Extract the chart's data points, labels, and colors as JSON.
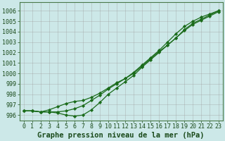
{
  "title": "Graphe pression niveau de la mer (hPa)",
  "xlabel_hours": [
    0,
    1,
    2,
    3,
    4,
    5,
    6,
    7,
    8,
    9,
    10,
    11,
    12,
    13,
    14,
    15,
    16,
    17,
    18,
    19,
    20,
    21,
    22,
    23
  ],
  "series": [
    [
      996.4,
      996.4,
      996.3,
      996.3,
      996.3,
      996.4,
      996.6,
      996.9,
      997.4,
      997.9,
      998.5,
      999.0,
      999.5,
      1000.1,
      1000.8,
      1001.5,
      1002.2,
      1003.0,
      1003.8,
      1004.5,
      1005.0,
      1005.4,
      1005.7,
      1006.0
    ],
    [
      996.4,
      996.4,
      996.3,
      996.3,
      996.2,
      996.0,
      995.9,
      996.0,
      996.5,
      997.2,
      998.0,
      998.6,
      999.2,
      999.8,
      1000.6,
      1001.3,
      1002.0,
      1002.7,
      1003.4,
      1004.2,
      1004.8,
      1005.2,
      1005.6,
      1006.0
    ],
    [
      996.4,
      996.4,
      996.3,
      996.5,
      996.8,
      997.1,
      997.3,
      997.4,
      997.7,
      998.1,
      998.6,
      999.1,
      999.5,
      1000.0,
      1000.7,
      1001.4,
      1002.1,
      1002.7,
      1003.4,
      1004.1,
      1004.7,
      1005.1,
      1005.5,
      1005.9
    ]
  ],
  "line_color": "#1a6b1a",
  "marker_color": "#1a6b1a",
  "bg_color": "#cce8e8",
  "grid_color": "#999999",
  "ylim": [
    995.5,
    1006.8
  ],
  "yticks": [
    996,
    997,
    998,
    999,
    1000,
    1001,
    1002,
    1003,
    1004,
    1005,
    1006
  ],
  "title_fontsize": 7.5,
  "tick_fontsize": 6,
  "label_color": "#1a4a1a"
}
